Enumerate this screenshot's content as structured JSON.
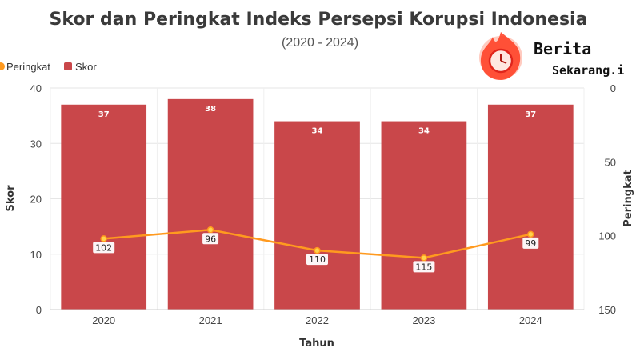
{
  "chart_data": {
    "type": "bar",
    "title": "Skor dan Peringkat Indeks Persepsi Korupsi Indonesia",
    "subtitle": "(2020 - 2024)",
    "xlabel": "Tahun",
    "ylabel": "Skor",
    "y2label": "Peringkat",
    "categories": [
      "2020",
      "2021",
      "2022",
      "2023",
      "2024"
    ],
    "ylim": [
      0,
      40
    ],
    "yticks": [
      0,
      10,
      20,
      30,
      40
    ],
    "y2lim": [
      0,
      150
    ],
    "y2ticks": [
      0,
      50,
      100,
      150
    ],
    "y2_reversed": true,
    "grid": true,
    "legend_position": "top-left",
    "series": [
      {
        "name": "Skor",
        "type": "bar",
        "axis": "left",
        "color": "#c9474a",
        "values": [
          37,
          38,
          34,
          34,
          37
        ]
      },
      {
        "name": "Peringkat",
        "type": "line",
        "axis": "right",
        "color": "#ff9a1f",
        "values": [
          102,
          96,
          110,
          115,
          99
        ]
      }
    ]
  },
  "logo": {
    "line1": "Berita",
    "line2": "Sekarang.i"
  }
}
